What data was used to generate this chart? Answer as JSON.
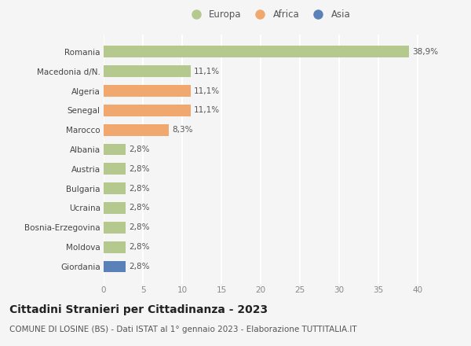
{
  "categories": [
    "Romania",
    "Macedonia d/N.",
    "Algeria",
    "Senegal",
    "Marocco",
    "Albania",
    "Austria",
    "Bulgaria",
    "Ucraina",
    "Bosnia-Erzegovina",
    "Moldova",
    "Giordania"
  ],
  "values": [
    38.9,
    11.1,
    11.1,
    11.1,
    8.3,
    2.8,
    2.8,
    2.8,
    2.8,
    2.8,
    2.8,
    2.8
  ],
  "labels": [
    "38,9%",
    "11,1%",
    "11,1%",
    "11,1%",
    "8,3%",
    "2,8%",
    "2,8%",
    "2,8%",
    "2,8%",
    "2,8%",
    "2,8%",
    "2,8%"
  ],
  "colors": [
    "#b5c98e",
    "#b5c98e",
    "#f0a86e",
    "#f0a86e",
    "#f0a86e",
    "#b5c98e",
    "#b5c98e",
    "#b5c98e",
    "#b5c98e",
    "#b5c98e",
    "#b5c98e",
    "#5b82b8"
  ],
  "legend_labels": [
    "Europa",
    "Africa",
    "Asia"
  ],
  "legend_colors": [
    "#b5c98e",
    "#f0a86e",
    "#5b82b8"
  ],
  "xlim": [
    0,
    42
  ],
  "xticks": [
    0,
    5,
    10,
    15,
    20,
    25,
    30,
    35,
    40
  ],
  "title": "Cittadini Stranieri per Cittadinanza - 2023",
  "subtitle": "COMUNE DI LOSINE (BS) - Dati ISTAT al 1° gennaio 2023 - Elaborazione TUTTITALIA.IT",
  "bg_color": "#f5f5f5",
  "grid_color": "#ffffff",
  "bar_height": 0.6,
  "title_fontsize": 10,
  "subtitle_fontsize": 7.5,
  "label_fontsize": 7.5,
  "tick_fontsize": 7.5,
  "legend_fontsize": 8.5
}
